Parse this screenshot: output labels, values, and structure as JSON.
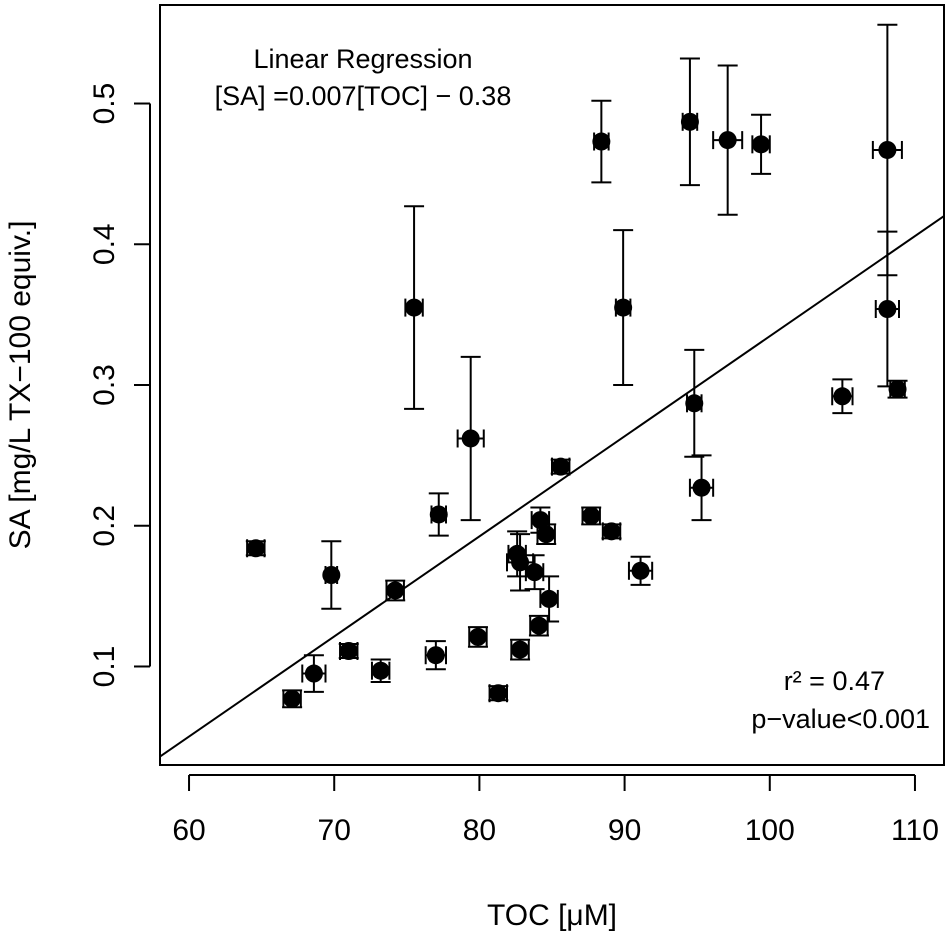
{
  "chart_data": {
    "type": "scatter",
    "title": "",
    "xlabel": "TOC [μM]",
    "ylabel": "SA [mg/L TX−100 equiv.]",
    "xlim": [
      58,
      112
    ],
    "ylim": [
      0.03,
      0.57
    ],
    "x_ticks": [
      60,
      70,
      80,
      90,
      100,
      110
    ],
    "x_tick_labels": [
      "60",
      "70",
      "80",
      "90",
      "100",
      "110"
    ],
    "y_ticks": [
      0.1,
      0.2,
      0.3,
      0.4,
      0.5
    ],
    "y_tick_labels": [
      "0.1",
      "0.2",
      "0.3",
      "0.4",
      "0.5"
    ],
    "colors": {
      "points": "#000000",
      "axes": "#000000",
      "background": "#ffffff"
    },
    "regression": {
      "title": "Linear Regression",
      "equation": "[SA] =0.007[TOC] − 0.38",
      "line_start": [
        58,
        0.036
      ],
      "line_end": [
        112,
        0.42
      ],
      "r2_text": "r² = 0.47",
      "p_text": "p−value<0.001"
    },
    "points": [
      {
        "x": 64.6,
        "y": 0.184,
        "xerr": 0.6,
        "yerr": 0.005
      },
      {
        "x": 67.1,
        "y": 0.077,
        "xerr": 0.6,
        "yerr": 0.006
      },
      {
        "x": 68.6,
        "y": 0.095,
        "xerr": 0.8,
        "yerr": 0.013
      },
      {
        "x": 69.8,
        "y": 0.165,
        "xerr": 0.4,
        "yerr": 0.024
      },
      {
        "x": 71.0,
        "y": 0.111,
        "xerr": 0.6,
        "yerr": 0.005
      },
      {
        "x": 73.2,
        "y": 0.097,
        "xerr": 0.6,
        "yerr": 0.008
      },
      {
        "x": 74.2,
        "y": 0.154,
        "xerr": 0.6,
        "yerr": 0.007
      },
      {
        "x": 75.5,
        "y": 0.355,
        "xerr": 0.6,
        "yerr": 0.072
      },
      {
        "x": 77.0,
        "y": 0.108,
        "xerr": 0.7,
        "yerr": 0.01
      },
      {
        "x": 77.2,
        "y": 0.208,
        "xerr": 0.5,
        "yerr": 0.015
      },
      {
        "x": 79.4,
        "y": 0.262,
        "xerr": 0.9,
        "yerr": 0.058
      },
      {
        "x": 79.9,
        "y": 0.121,
        "xerr": 0.6,
        "yerr": 0.007
      },
      {
        "x": 81.3,
        "y": 0.081,
        "xerr": 0.6,
        "yerr": 0.005
      },
      {
        "x": 82.6,
        "y": 0.18,
        "xerr": 0.6,
        "yerr": 0.016
      },
      {
        "x": 82.8,
        "y": 0.112,
        "xerr": 0.6,
        "yerr": 0.007
      },
      {
        "x": 82.8,
        "y": 0.174,
        "xerr": 0.9,
        "yerr": 0.02
      },
      {
        "x": 83.8,
        "y": 0.167,
        "xerr": 0.6,
        "yerr": 0.012
      },
      {
        "x": 84.1,
        "y": 0.129,
        "xerr": 0.6,
        "yerr": 0.007
      },
      {
        "x": 84.2,
        "y": 0.204,
        "xerr": 0.6,
        "yerr": 0.009
      },
      {
        "x": 84.6,
        "y": 0.194,
        "xerr": 0.6,
        "yerr": 0.007
      },
      {
        "x": 84.8,
        "y": 0.148,
        "xerr": 0.6,
        "yerr": 0.016
      },
      {
        "x": 85.6,
        "y": 0.242,
        "xerr": 0.6,
        "yerr": 0.005
      },
      {
        "x": 87.7,
        "y": 0.207,
        "xerr": 0.6,
        "yerr": 0.006
      },
      {
        "x": 88.4,
        "y": 0.473,
        "xerr": 0.5,
        "yerr": 0.029
      },
      {
        "x": 89.1,
        "y": 0.196,
        "xerr": 0.6,
        "yerr": 0.005
      },
      {
        "x": 89.9,
        "y": 0.355,
        "xerr": 0.5,
        "yerr": 0.055
      },
      {
        "x": 91.1,
        "y": 0.168,
        "xerr": 0.8,
        "yerr": 0.01
      },
      {
        "x": 94.5,
        "y": 0.487,
        "xerr": 0.5,
        "yerr": 0.045
      },
      {
        "x": 94.8,
        "y": 0.287,
        "xerr": 0.5,
        "yerr": 0.038
      },
      {
        "x": 95.3,
        "y": 0.227,
        "xerr": 0.8,
        "yerr": 0.023
      },
      {
        "x": 97.1,
        "y": 0.474,
        "xerr": 1.0,
        "yerr": 0.053
      },
      {
        "x": 99.4,
        "y": 0.471,
        "xerr": 0.6,
        "yerr": 0.021
      },
      {
        "x": 105.0,
        "y": 0.292,
        "xerr": 0.7,
        "yerr": 0.012
      },
      {
        "x": 108.1,
        "y": 0.467,
        "xerr": 1.0,
        "yerr": 0.089
      },
      {
        "x": 108.1,
        "y": 0.354,
        "xerr": 0.8,
        "yerr": 0.055
      },
      {
        "x": 108.8,
        "y": 0.297,
        "xerr": 0.5,
        "yerr": 0.006
      }
    ]
  }
}
